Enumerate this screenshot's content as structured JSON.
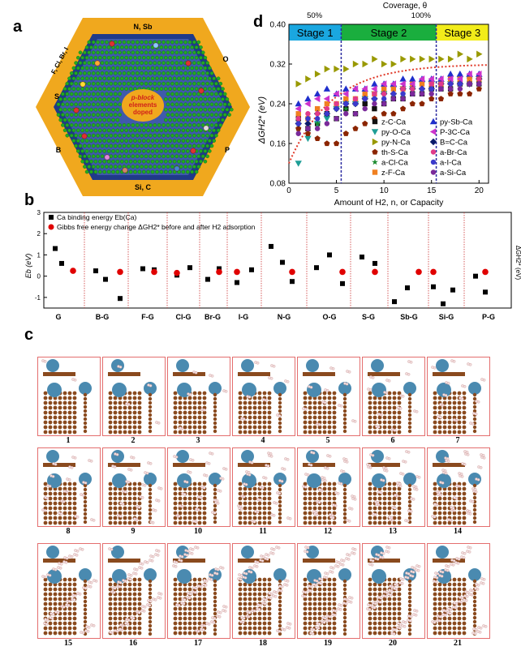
{
  "panel_a": {
    "label": "a",
    "edges": [
      "N, Sb",
      "O",
      "P",
      "Si, C",
      "B",
      "S",
      "F, Cl, Br, I"
    ],
    "center_text": [
      "p-block",
      "elements",
      "doped"
    ]
  },
  "panel_b": {
    "label": "b",
    "legend": [
      "Ca binding energy Eb(Ca)",
      "Gibbs free energy change ΔGH2* before and after H2 adsorption"
    ],
    "ylabel_left": "Eb (eV)",
    "ylabel_right": "ΔGH2* (eV)",
    "yticks": [
      "-1",
      "0",
      "1",
      "2",
      "3"
    ],
    "groups": [
      "G",
      "B-G",
      "F-G",
      "Cl-G",
      "Br-G",
      "I-G",
      "N-G",
      "O-G",
      "S-G",
      "Sb-G",
      "Si-G",
      "P-G"
    ]
  },
  "panel_c": {
    "label": "c",
    "numbers": [
      "1",
      "2",
      "3",
      "4",
      "5",
      "6",
      "7",
      "8",
      "9",
      "10",
      "11",
      "12",
      "13",
      "14",
      "15",
      "16",
      "17",
      "18",
      "19",
      "20",
      "21"
    ]
  },
  "chart_data": [
    {
      "type": "scatter",
      "panel": "d",
      "title": "",
      "top_axis_label": "Coverage, θ",
      "top_ticks": [
        "50%",
        "100%"
      ],
      "xlabel": "Amount of H2, n, or Capacity",
      "ylabel": "ΔGH2* (eV)",
      "xlim": [
        0,
        21
      ],
      "ylim": [
        0.08,
        0.4
      ],
      "xticks": [
        0,
        5,
        10,
        15,
        20
      ],
      "yticks": [
        0.08,
        0.16,
        0.24,
        0.32,
        0.4
      ],
      "stages": [
        {
          "label": "Stage 1",
          "x": [
            0,
            5.5
          ],
          "color": "#1aa7e0"
        },
        {
          "label": "Stage 2",
          "x": [
            5.5,
            15.5
          ],
          "color": "#1aae3e"
        },
        {
          "label": "Stage 3",
          "x": [
            15.5,
            21
          ],
          "color": "#f2ec1a"
        }
      ],
      "legend": [
        "z-C-Ca",
        "py-O-Ca",
        "py-N-Ca",
        "th-S-Ca",
        "a-Cl-Ca",
        "z-F-Ca",
        "py-Sb-Ca",
        "P-3C-Ca",
        "B=C-Ca",
        "a-Br-Ca",
        "a-I-Ca",
        "a-Si-Ca"
      ],
      "fit_curve": true,
      "series": [
        {
          "name": "z-C-Ca",
          "color": "#111111",
          "marker": "square",
          "y": [
            0.21,
            0.19,
            0.2,
            0.22,
            0.21,
            0.23,
            0.22,
            0.24,
            0.23,
            0.24,
            0.25,
            0.25,
            0.26,
            0.26,
            0.27,
            0.27,
            0.27,
            0.28,
            0.28,
            0.28
          ]
        },
        {
          "name": "py-O-Ca",
          "color": "#1e9e96",
          "marker": "tri-down",
          "y": [
            0.12,
            0.17,
            0.2,
            0.21,
            0.23,
            0.24,
            0.24,
            0.25,
            0.26,
            0.26,
            0.27,
            0.27,
            0.27,
            0.28,
            0.28,
            0.28,
            0.28,
            0.29,
            0.29,
            0.29
          ]
        },
        {
          "name": "py-N-Ca",
          "color": "#999900",
          "marker": "tri-right",
          "y": [
            0.28,
            0.29,
            0.3,
            0.31,
            0.31,
            0.31,
            0.32,
            0.32,
            0.33,
            0.32,
            0.32,
            0.33,
            0.33,
            0.33,
            0.33,
            0.33,
            0.33,
            0.34,
            0.33,
            0.34
          ]
        },
        {
          "name": "th-S-Ca",
          "color": "#8b2500",
          "marker": "pentagon",
          "y": [
            0.19,
            0.18,
            0.17,
            0.16,
            0.16,
            0.18,
            0.19,
            0.2,
            0.21,
            0.22,
            0.22,
            0.23,
            0.24,
            0.24,
            0.25,
            0.25,
            0.26,
            0.26,
            0.26,
            0.27
          ]
        },
        {
          "name": "a-Cl-Ca",
          "color": "#1a8a2e",
          "marker": "star",
          "y": [
            0.2,
            0.21,
            0.2,
            0.22,
            0.23,
            0.23,
            0.24,
            0.25,
            0.25,
            0.26,
            0.26,
            0.26,
            0.27,
            0.27,
            0.28,
            0.28,
            0.28,
            0.28,
            0.29,
            0.29
          ]
        },
        {
          "name": "z-F-Ca",
          "color": "#f08020",
          "marker": "square",
          "y": [
            0.22,
            0.21,
            0.23,
            0.24,
            0.24,
            0.25,
            0.25,
            0.26,
            0.26,
            0.27,
            0.27,
            0.27,
            0.28,
            0.28,
            0.28,
            0.28,
            0.29,
            0.29,
            0.29,
            0.29
          ]
        },
        {
          "name": "py-Sb-Ca",
          "color": "#1f2fcc",
          "marker": "tri-up",
          "y": [
            0.24,
            0.25,
            0.26,
            0.27,
            0.26,
            0.27,
            0.27,
            0.27,
            0.28,
            0.28,
            0.28,
            0.29,
            0.29,
            0.29,
            0.29,
            0.29,
            0.3,
            0.3,
            0.3,
            0.3
          ]
        },
        {
          "name": "P-3C-Ca",
          "color": "#cc33cc",
          "marker": "tri-left",
          "y": [
            0.23,
            0.24,
            0.25,
            0.25,
            0.26,
            0.26,
            0.27,
            0.27,
            0.27,
            0.28,
            0.28,
            0.28,
            0.28,
            0.29,
            0.29,
            0.29,
            0.29,
            0.29,
            0.3,
            0.3
          ]
        },
        {
          "name": "B=C-Ca",
          "color": "#0a1a6a",
          "marker": "diamond",
          "y": [
            0.2,
            0.2,
            0.22,
            0.22,
            0.23,
            0.24,
            0.24,
            0.25,
            0.25,
            0.26,
            0.26,
            0.27,
            0.27,
            0.27,
            0.27,
            0.28,
            0.28,
            0.28,
            0.28,
            0.29
          ]
        },
        {
          "name": "a-Br-Ca",
          "color": "#e03a8a",
          "marker": "circle",
          "y": [
            0.21,
            0.22,
            0.22,
            0.23,
            0.24,
            0.24,
            0.25,
            0.25,
            0.26,
            0.26,
            0.26,
            0.27,
            0.27,
            0.27,
            0.28,
            0.28,
            0.28,
            0.28,
            0.28,
            0.29
          ]
        },
        {
          "name": "a-I-Ca",
          "color": "#3a3acc",
          "marker": "circle",
          "y": [
            0.2,
            0.21,
            0.21,
            0.22,
            0.23,
            0.24,
            0.24,
            0.25,
            0.25,
            0.25,
            0.26,
            0.26,
            0.26,
            0.27,
            0.27,
            0.27,
            0.28,
            0.28,
            0.28,
            0.28
          ]
        },
        {
          "name": "a-Si-Ca",
          "color": "#7a2a9a",
          "marker": "circle",
          "y": [
            0.18,
            0.19,
            0.19,
            0.2,
            0.21,
            0.22,
            0.22,
            0.23,
            0.24,
            0.24,
            0.25,
            0.25,
            0.26,
            0.26,
            0.26,
            0.27,
            0.27,
            0.27,
            0.28,
            0.28
          ]
        }
      ]
    }
  ]
}
